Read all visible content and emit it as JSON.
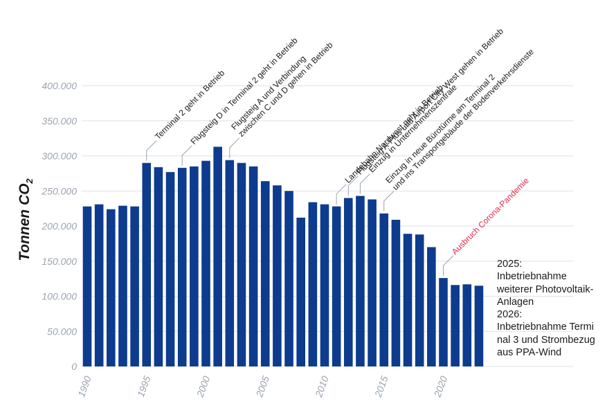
{
  "chart_data": {
    "type": "bar",
    "ylabel": "Tonnen CO",
    "ylabel_sub": "2",
    "ylim": [
      0,
      400000
    ],
    "yticks": [
      "0",
      "50.000",
      "100.000",
      "150.000",
      "200.000",
      "250.000",
      "300.000",
      "350.000",
      "400.000"
    ],
    "xtick_labels": [
      "1990",
      "1995",
      "2000",
      "2005",
      "2010",
      "2015",
      "2020"
    ],
    "grid": true,
    "bar_color": "#0d3b8e",
    "categories": [
      1990,
      1991,
      1992,
      1993,
      1994,
      1995,
      1996,
      1997,
      1998,
      1999,
      2000,
      2001,
      2002,
      2003,
      2004,
      2005,
      2006,
      2007,
      2008,
      2009,
      2010,
      2011,
      2012,
      2013,
      2014,
      2015,
      2016,
      2017,
      2018,
      2019,
      2020,
      2021,
      2022,
      2023
    ],
    "values": [
      228000,
      231000,
      224000,
      229000,
      228000,
      290000,
      284000,
      277000,
      283000,
      285000,
      293000,
      313000,
      294000,
      290000,
      285000,
      264000,
      258000,
      250000,
      212000,
      234000,
      231000,
      228000,
      240000,
      243000,
      238000,
      218000,
      209000,
      189000,
      188000,
      170000,
      126000,
      116000,
      117000,
      115000
    ],
    "annotations": [
      {
        "year": 1995,
        "lines": [
          "Terminal 2 geht in Betrieb"
        ],
        "color": "#1a1a1a"
      },
      {
        "year": 1998,
        "lines": [
          "Flugsteig D in Terminal 2 geht in Betrieb"
        ],
        "color": "#1a1a1a"
      },
      {
        "year": 2002,
        "lines": [
          "Flugsteig A und Verbindung",
          "zwischen C und D gehen in Betrieb"
        ],
        "color": "#1a1a1a"
      },
      {
        "year": 2011,
        "lines": [
          "Landebahn Nordwest geht in Betrieb"
        ],
        "color": "#1a1a1a"
      },
      {
        "year": 2012,
        "lines": [
          "Flugsteig A-Plus und Airport City West gehen in Betrieb"
        ],
        "color": "#1a1a1a"
      },
      {
        "year": 2013,
        "lines": [
          "Einzug in Unternehmenszentrale"
        ],
        "color": "#1a1a1a"
      },
      {
        "year": 2015,
        "lines": [
          "Einzug in neue Bürotürme am Terminal 2",
          "und ins Transportgebäude der Bodenverkehrsdienste"
        ],
        "color": "#1a1a1a"
      },
      {
        "year": 2020,
        "lines": [
          "Ausbruch Corona-Pandemie"
        ],
        "color": "#e0284f"
      }
    ]
  },
  "note": {
    "lines": [
      "2025:",
      "Inbetriebnahme",
      "weiterer Photovoltaik-",
      "Anlagen",
      "2026:",
      "Inbetriebnahme Termi",
      "nal 3 und Strombezug",
      "aus PPA-Wind"
    ]
  }
}
